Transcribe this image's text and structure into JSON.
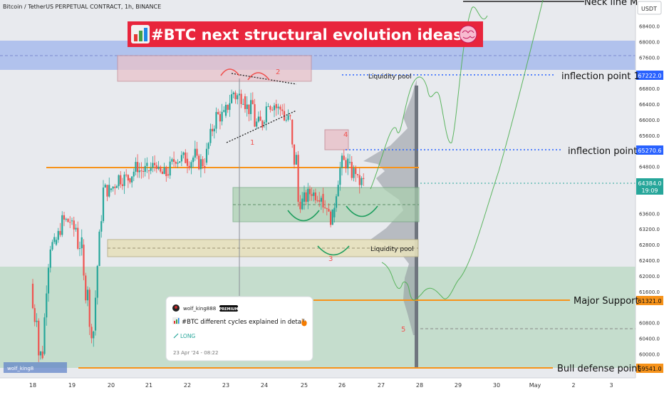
{
  "header": {
    "symbol_line": "Bitcoin / TetherUS PERPETUAL CONTRACT, 1h, BINANCE"
  },
  "headline": {
    "text": "#BTC next structural evolution ideas",
    "icon": "chart-emoji-icon",
    "icon_right": "brain-emoji-icon"
  },
  "price_axis": {
    "currency": "USDT"
  },
  "labels": {
    "neckline": "Neck line M",
    "inflection1": "inflection point 1",
    "inflection": "inflection point",
    "major_support": "Major Support",
    "bull_defense": "Bull defense point",
    "liq_pool_top": "Liquidity pool",
    "liq_pool_bottom": "Liquidity pool",
    "n1": "1",
    "n2": "2",
    "n3": "3",
    "n4": "4",
    "n5": "5"
  },
  "price_badges": {
    "inflection1": "67222.0",
    "inflection": "65270.6",
    "last_price": "64384.0",
    "countdown": "19:09",
    "major_support": "61321.0",
    "bull_defense": "59541.0"
  },
  "idea_card": {
    "author": "wolf_king888",
    "badge": "PREMIUM",
    "title": "#BTC different cycles explained in detail",
    "direction": "LONG",
    "date": "23 Apr '24 - 08:22"
  },
  "watermark": {
    "text": "wolf_king8"
  },
  "colors": {
    "up": "#26a69a",
    "down": "#ef5350",
    "orange": "#f7931a",
    "blue_line": "#2962ff",
    "headline_bg": "#e8253c"
  },
  "chart_data": {
    "type": "candlestick",
    "title": "Bitcoin / TetherUS PERPETUAL CONTRACT, 1h, BINANCE",
    "x_ticks": [
      "18",
      "19",
      "20",
      "21",
      "22",
      "23",
      "24",
      "25",
      "26",
      "27",
      "28",
      "29",
      "30",
      "May",
      "2",
      "3"
    ],
    "y_ticks": [
      68400,
      68000,
      67600,
      66800,
      66400,
      66000,
      65600,
      64800,
      63600,
      63200,
      62800,
      62400,
      62000,
      61600,
      60800,
      60400,
      60000
    ],
    "y_range": [
      59200,
      68900
    ],
    "horizontal_levels": [
      {
        "name": "inflection point 1",
        "price": 67222.0
      },
      {
        "name": "inflection point",
        "price": 65270.6
      },
      {
        "name": "orange level",
        "price": 64800
      },
      {
        "name": "Major Support",
        "price": 61321.0
      },
      {
        "name": "Bull defense point",
        "price": 59541.0
      }
    ],
    "last_price": 64384.0,
    "candles_hourly_approx": [
      [
        18.0,
        61800,
        62200,
        59600,
        60000
      ],
      [
        18.3,
        60000,
        63200,
        59800,
        62800
      ],
      [
        18.6,
        62800,
        63800,
        62200,
        63400
      ],
      [
        19.0,
        63400,
        63900,
        62600,
        62800
      ],
      [
        19.3,
        62800,
        63000,
        59600,
        60600
      ],
      [
        19.6,
        60600,
        64400,
        60400,
        64200
      ],
      [
        20.0,
        64200,
        64800,
        63800,
        64500
      ],
      [
        20.5,
        64500,
        65200,
        64300,
        64700
      ],
      [
        21.0,
        64700,
        65600,
        64200,
        64600
      ],
      [
        21.5,
        64600,
        65400,
        64300,
        65000
      ],
      [
        22.0,
        65000,
        65500,
        64400,
        64900
      ],
      [
        22.5,
        64900,
        66300,
        64800,
        66100
      ],
      [
        23.0,
        66100,
        67300,
        65800,
        66600
      ],
      [
        23.5,
        66600,
        67000,
        65500,
        65900
      ],
      [
        24.0,
        65900,
        67100,
        65600,
        66400
      ],
      [
        24.3,
        66400,
        66800,
        65800,
        66000
      ],
      [
        24.7,
        66000,
        66200,
        63600,
        63900
      ],
      [
        25.0,
        63900,
        64500,
        63700,
        64100
      ],
      [
        25.5,
        64100,
        64300,
        63100,
        63500
      ],
      [
        25.8,
        63500,
        65300,
        63300,
        64900
      ],
      [
        26.2,
        64900,
        65100,
        64000,
        64400
      ],
      [
        26.6,
        64400,
        64700,
        64100,
        64384
      ]
    ]
  }
}
